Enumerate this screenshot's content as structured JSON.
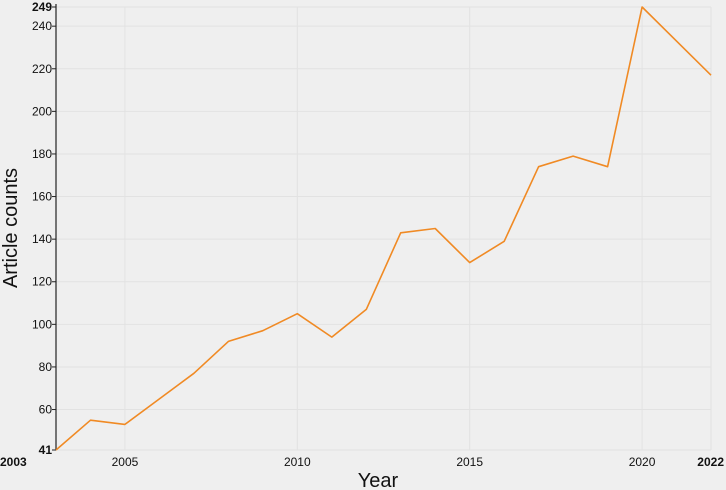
{
  "chart_data": {
    "type": "line",
    "title": "",
    "xlabel": "Year",
    "ylabel": "Article counts",
    "x": [
      2003,
      2004,
      2005,
      2006,
      2007,
      2008,
      2009,
      2010,
      2011,
      2012,
      2013,
      2014,
      2015,
      2016,
      2017,
      2018,
      2019,
      2020,
      2021,
      2022
    ],
    "series": [
      {
        "values": [
          41,
          55,
          53,
          65,
          77,
          92,
          97,
          105,
          94,
          107,
          143,
          145,
          129,
          139,
          174,
          179,
          174,
          249,
          233,
          217
        ],
        "color": "#f08a24"
      }
    ],
    "xlim": [
      2003,
      2022
    ],
    "ylim": [
      41,
      249
    ],
    "xticks": [
      {
        "value": 2003,
        "label": "2003",
        "bold": true
      },
      {
        "value": 2005,
        "label": "2005",
        "bold": false
      },
      {
        "value": 2010,
        "label": "2010",
        "bold": false
      },
      {
        "value": 2015,
        "label": "2015",
        "bold": false
      },
      {
        "value": 2020,
        "label": "2020",
        "bold": false
      },
      {
        "value": 2022,
        "label": "2022",
        "bold": true
      }
    ],
    "yticks": [
      {
        "value": 41,
        "label": "41",
        "bold": true
      },
      {
        "value": 60,
        "label": "60",
        "bold": false
      },
      {
        "value": 80,
        "label": "80",
        "bold": false
      },
      {
        "value": 100,
        "label": "100",
        "bold": false
      },
      {
        "value": 120,
        "label": "120",
        "bold": false
      },
      {
        "value": 140,
        "label": "140",
        "bold": false
      },
      {
        "value": 160,
        "label": "160",
        "bold": false
      },
      {
        "value": 180,
        "label": "180",
        "bold": false
      },
      {
        "value": 200,
        "label": "200",
        "bold": false
      },
      {
        "value": 220,
        "label": "220",
        "bold": false
      },
      {
        "value": 240,
        "label": "240",
        "bold": false
      },
      {
        "value": 249,
        "label": "249",
        "bold": true
      }
    ],
    "grid": true,
    "background": "#efefef",
    "grid_color": "#e2e2e2",
    "axis_color": "#222222"
  }
}
